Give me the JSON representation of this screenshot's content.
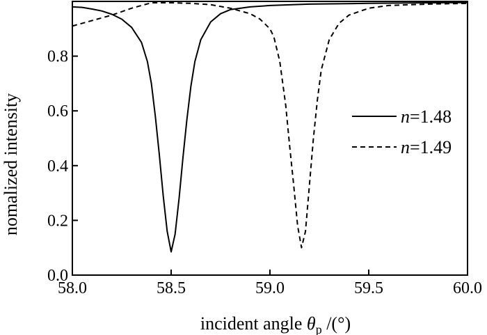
{
  "chart_data": {
    "type": "line",
    "title": "",
    "xlabel": {
      "prefix": "incident angle ",
      "symbol": "θ",
      "subscript": "p",
      "suffix": " /(°)"
    },
    "ylabel": "nomalized intensity",
    "xlim": [
      58.0,
      60.0
    ],
    "ylim": [
      0.0,
      1.0
    ],
    "xticks": [
      "58.0",
      "58.5",
      "59.0",
      "59.5",
      "60.0"
    ],
    "yticks": [
      "0.0",
      "0.2",
      "0.4",
      "0.6",
      "0.8"
    ],
    "legend_position": "right",
    "series": [
      {
        "name": "n=1.48",
        "legend_var": "n",
        "legend_value": "=1.48",
        "style": "solid",
        "points": [
          [
            58.0,
            0.98
          ],
          [
            58.05,
            0.978
          ],
          [
            58.1,
            0.972
          ],
          [
            58.15,
            0.965
          ],
          [
            58.2,
            0.953
          ],
          [
            58.25,
            0.935
          ],
          [
            58.3,
            0.905
          ],
          [
            58.35,
            0.85
          ],
          [
            58.38,
            0.78
          ],
          [
            58.4,
            0.7
          ],
          [
            58.42,
            0.58
          ],
          [
            58.44,
            0.44
          ],
          [
            58.46,
            0.29
          ],
          [
            58.48,
            0.16
          ],
          [
            58.5,
            0.085
          ],
          [
            58.52,
            0.15
          ],
          [
            58.54,
            0.28
          ],
          [
            58.56,
            0.43
          ],
          [
            58.58,
            0.57
          ],
          [
            58.6,
            0.69
          ],
          [
            58.62,
            0.78
          ],
          [
            58.65,
            0.86
          ],
          [
            58.7,
            0.925
          ],
          [
            58.75,
            0.955
          ],
          [
            58.8,
            0.97
          ],
          [
            58.9,
            0.98
          ],
          [
            59.0,
            0.985
          ],
          [
            59.2,
            0.99
          ],
          [
            59.5,
            0.993
          ],
          [
            59.8,
            0.995
          ],
          [
            60.0,
            0.996
          ]
        ]
      },
      {
        "name": "n=1.49",
        "legend_var": "n",
        "legend_value": "=1.49",
        "style": "dashed",
        "points": [
          [
            58.0,
            0.91
          ],
          [
            58.1,
            0.93
          ],
          [
            58.2,
            0.95
          ],
          [
            58.3,
            0.975
          ],
          [
            58.4,
            0.995
          ],
          [
            58.5,
            0.995
          ],
          [
            58.6,
            0.993
          ],
          [
            58.7,
            0.988
          ],
          [
            58.8,
            0.975
          ],
          [
            58.9,
            0.955
          ],
          [
            58.95,
            0.935
          ],
          [
            59.0,
            0.9
          ],
          [
            59.02,
            0.87
          ],
          [
            59.05,
            0.78
          ],
          [
            59.08,
            0.62
          ],
          [
            59.1,
            0.47
          ],
          [
            59.12,
            0.33
          ],
          [
            59.14,
            0.18
          ],
          [
            59.16,
            0.1
          ],
          [
            59.18,
            0.16
          ],
          [
            59.2,
            0.33
          ],
          [
            59.22,
            0.5
          ],
          [
            59.24,
            0.64
          ],
          [
            59.26,
            0.75
          ],
          [
            59.3,
            0.86
          ],
          [
            59.35,
            0.92
          ],
          [
            59.4,
            0.95
          ],
          [
            59.5,
            0.975
          ],
          [
            59.6,
            0.985
          ],
          [
            59.8,
            0.99
          ],
          [
            60.0,
            0.993
          ]
        ]
      }
    ]
  }
}
